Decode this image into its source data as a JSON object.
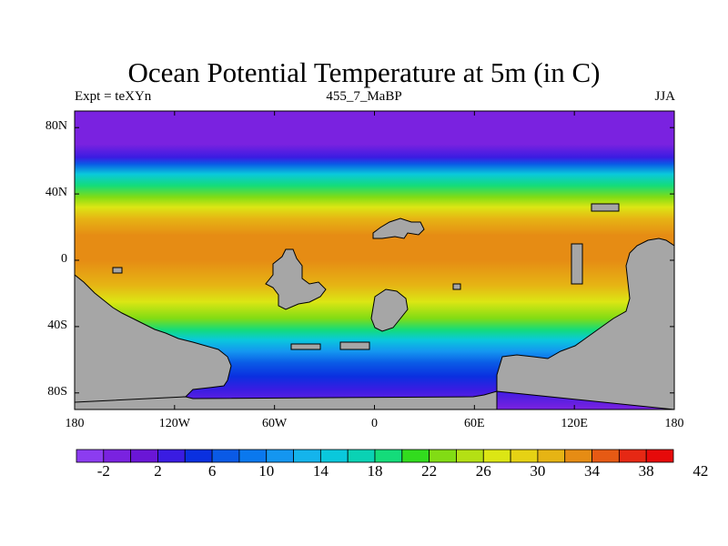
{
  "title": "Ocean Potential Temperature at 5m (in C)",
  "subtitle_left": "Expt = teXYn",
  "subtitle_center": "455_7_MaBP",
  "subtitle_right": "JJA",
  "map": {
    "lon_range": [
      -180,
      180
    ],
    "lat_range": [
      -90,
      90
    ],
    "y_ticks": [
      {
        "label": "80N",
        "lat": 80
      },
      {
        "label": "40N",
        "lat": 40
      },
      {
        "label": "0",
        "lat": 0
      },
      {
        "label": "40S",
        "lat": -40
      },
      {
        "label": "80S",
        "lat": -80
      }
    ],
    "x_ticks": [
      {
        "label": "180",
        "lon": -180
      },
      {
        "label": "120W",
        "lon": -120
      },
      {
        "label": "60W",
        "lon": -60
      },
      {
        "label": "0",
        "lon": 0
      },
      {
        "label": "60E",
        "lon": 60
      },
      {
        "label": "120E",
        "lon": 120
      },
      {
        "label": "180",
        "lon": 180
      }
    ],
    "land_color": "#a6a6a6",
    "sst_by_latitude": [
      [
        90,
        -2
      ],
      [
        70,
        -2
      ],
      [
        62,
        2
      ],
      [
        58,
        6
      ],
      [
        52,
        14
      ],
      [
        45,
        18
      ],
      [
        38,
        22
      ],
      [
        32,
        26
      ],
      [
        25,
        30
      ],
      [
        15,
        32
      ],
      [
        0,
        31
      ],
      [
        -15,
        30
      ],
      [
        -25,
        26
      ],
      [
        -35,
        22
      ],
      [
        -42,
        18
      ],
      [
        -48,
        14
      ],
      [
        -55,
        10
      ],
      [
        -62,
        6
      ],
      [
        -70,
        4
      ],
      [
        -78,
        2
      ],
      [
        -90,
        -2
      ]
    ]
  },
  "colorbar": {
    "labels": [
      "-2",
      "2",
      "6",
      "10",
      "14",
      "18",
      "22",
      "26",
      "30",
      "34",
      "38",
      "42"
    ],
    "colors": [
      "#8c3cf0",
      "#7a22e0",
      "#6a16d6",
      "#3a1ce2",
      "#0a30e0",
      "#0a5ae6",
      "#0a78ee",
      "#1496f0",
      "#14b4ec",
      "#0ac8dc",
      "#0ad2b4",
      "#14dc7a",
      "#32dc1e",
      "#82dc14",
      "#b4e014",
      "#dce614",
      "#e6d214",
      "#e6b414",
      "#e68c14",
      "#e65a14",
      "#e62814",
      "#e60a0a"
    ]
  }
}
